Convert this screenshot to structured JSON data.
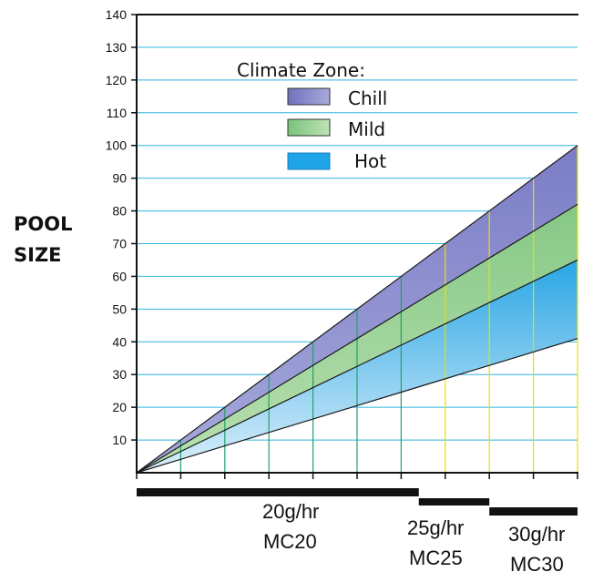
{
  "chart_data": {
    "type": "area",
    "title": "",
    "xlabel": "",
    "ylabel": "POOL SIZE",
    "ylabel_lines": [
      "POOL",
      "SIZE"
    ],
    "y_ticks": [
      10,
      20,
      30,
      40,
      50,
      60,
      70,
      80,
      90,
      100,
      110,
      120,
      130,
      140
    ],
    "ylim": [
      0,
      140
    ],
    "x_steps": [
      0,
      1,
      2,
      3,
      4,
      5,
      6,
      7,
      8,
      9,
      10
    ],
    "grid": true,
    "legend_title": "Climate Zone:",
    "legend_position": "top-left",
    "series": [
      {
        "name": "Chill",
        "color": "#7f7fc8",
        "values": [
          0,
          10,
          20,
          30,
          40,
          50,
          60,
          70,
          80,
          90,
          100
        ]
      },
      {
        "name": "Mild",
        "color": "#8fcf8f",
        "values": [
          0,
          8.2,
          16.4,
          24.6,
          32.8,
          41,
          49.2,
          57.4,
          65.6,
          73.8,
          82
        ]
      },
      {
        "name": "Hot",
        "color": "#1ea8e6",
        "values": [
          0,
          6.5,
          13,
          19.5,
          26,
          32.5,
          39,
          45.5,
          52,
          58.5,
          65
        ]
      }
    ],
    "hot_lower_bound": [
      0,
      4.1,
      8.2,
      12.3,
      16.4,
      20.5,
      24.6,
      28.7,
      32.8,
      36.9,
      41
    ],
    "models": [
      {
        "rate": "20g/hr",
        "model": "MC20",
        "x_start": 0,
        "x_end": 6.4
      },
      {
        "rate": "25g/hr",
        "model": "MC25",
        "x_start": 6.4,
        "x_end": 8
      },
      {
        "rate": "30g/hr",
        "model": "MC30",
        "x_start": 8,
        "x_end": 10
      }
    ],
    "colors": {
      "grid": "#2db3e0",
      "green_vertical": "#22a06b",
      "yellow_vertical": "#e8e000",
      "axis": "#111111",
      "bar": "#111111"
    }
  }
}
